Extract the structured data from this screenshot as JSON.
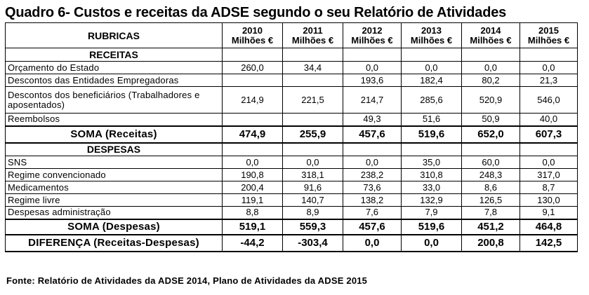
{
  "title": "Quadro 6- Custos e receitas da ADSE segundo o seu Relatório de Atividades",
  "source": "Fonte: Relatório de Atividades da ADSE 2014, Plano de Atividades da ADSE 2015",
  "header": {
    "rubricas": "RUBRICAS",
    "years": [
      "2010",
      "2011",
      "2012",
      "2013",
      "2014",
      "2015"
    ],
    "unit": "Milhões €"
  },
  "receitas": {
    "section": "RECEITAS",
    "rows": [
      {
        "label": "Orçamento do Estado",
        "values": [
          "260,0",
          "34,4",
          "0,0",
          "0,0",
          "0,0",
          "0,0"
        ]
      },
      {
        "label": "Descontos das Entidades Empregadoras",
        "values": [
          "",
          "",
          "193,6",
          "182,4",
          "80,2",
          "21,3"
        ]
      },
      {
        "label": "Descontos dos beneficiários (Trabalhadores e aposentados)",
        "values": [
          "214,9",
          "221,5",
          "214,7",
          "285,6",
          "520,9",
          "546,0"
        ]
      },
      {
        "label": "Reembolsos",
        "values": [
          "",
          "",
          "49,3",
          "51,6",
          "50,9",
          "40,0"
        ]
      }
    ],
    "sum": {
      "label": "SOMA (Receitas)",
      "values": [
        "474,9",
        "255,9",
        "457,6",
        "519,6",
        "652,0",
        "607,3"
      ]
    }
  },
  "despesas": {
    "section": "DESPESAS",
    "rows": [
      {
        "label": "SNS",
        "values": [
          "0,0",
          "0,0",
          "0,0",
          "35,0",
          "60,0",
          "0,0"
        ]
      },
      {
        "label": "Regime convencionado",
        "values": [
          "190,8",
          "318,1",
          "238,2",
          "310,8",
          "248,3",
          "317,0"
        ]
      },
      {
        "label": "Medicamentos",
        "values": [
          "200,4",
          "91,6",
          "73,6",
          "33,0",
          "8,6",
          "8,7"
        ]
      },
      {
        "label": "Regime livre",
        "values": [
          "119,1",
          "140,7",
          "138,2",
          "132,9",
          "126,5",
          "130,0"
        ]
      },
      {
        "label": "Despesas administração",
        "values": [
          "8,8",
          "8,9",
          "7,6",
          "7,9",
          "7,8",
          "9,1"
        ]
      }
    ],
    "sum": {
      "label": "SOMA (Despesas)",
      "values": [
        "519,1",
        "559,3",
        "457,6",
        "519,6",
        "451,2",
        "464,8"
      ]
    }
  },
  "diferenca": {
    "label": "DIFERENÇA (Receitas-Despesas)",
    "values": [
      "-44,2",
      "-303,4",
      "0,0",
      "0,0",
      "200,8",
      "142,5"
    ]
  }
}
